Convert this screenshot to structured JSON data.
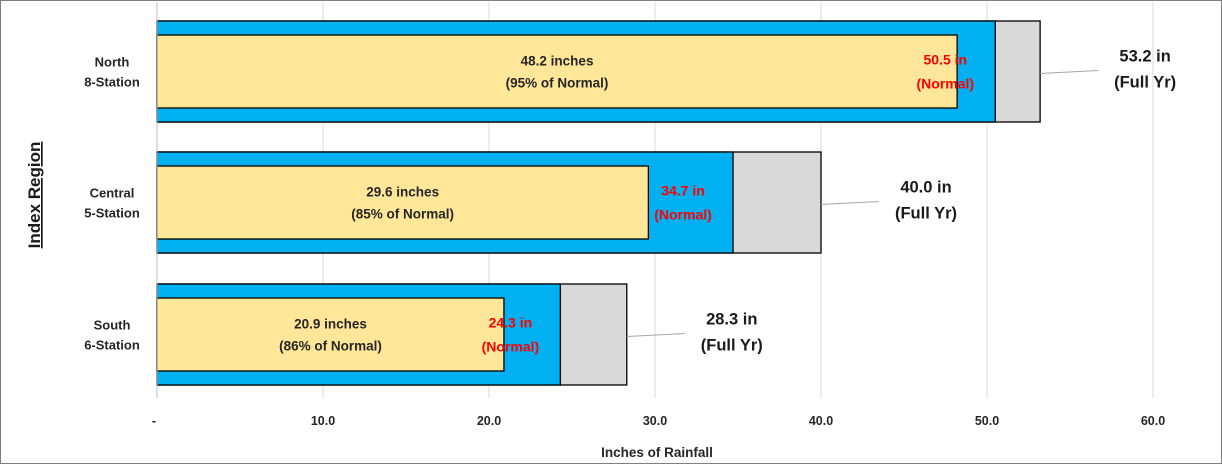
{
  "chart_data": {
    "type": "bar",
    "orientation": "horizontal",
    "xlabel": "Inches of Rainfall",
    "ylabel": "Index  Region",
    "xlim": [
      0,
      64
    ],
    "xticks": [
      0,
      10,
      20,
      30,
      40,
      50,
      60
    ],
    "xtick_labels": [
      "-",
      "10.0",
      "20.0",
      "30.0",
      "40.0",
      "50.0",
      "60.0"
    ],
    "grid": "vertical",
    "colors": {
      "actual": "#FFE699",
      "normal": "#00B0F0",
      "full": "#D9D9D9",
      "normal_text": "#FF0000",
      "outline": "#000000"
    },
    "categories": [
      {
        "name": [
          "North",
          "8-Station"
        ],
        "actual": 48.2,
        "normal": 50.5,
        "full_year": 53.2,
        "actual_label": [
          "48.2 inches",
          "(95% of Normal)"
        ],
        "normal_label": [
          "50.5 in",
          "(Normal)"
        ],
        "full_label": [
          "53.2 in",
          "(Full Yr)"
        ]
      },
      {
        "name": [
          "Central",
          "5-Station"
        ],
        "actual": 29.6,
        "normal": 34.7,
        "full_year": 40.0,
        "actual_label": [
          "29.6 inches",
          "(85% of Normal)"
        ],
        "normal_label": [
          "34.7 in",
          "(Normal)"
        ],
        "full_label": [
          "40.0 in",
          "(Full Yr)"
        ]
      },
      {
        "name": [
          "South",
          "6-Station"
        ],
        "actual": 20.9,
        "normal": 24.3,
        "full_year": 28.3,
        "actual_label": [
          "20.9 inches",
          "(86% of Normal)"
        ],
        "normal_label": [
          "24.3 in",
          "(Normal)"
        ],
        "full_label": [
          "28.3 in",
          "(Full Yr)"
        ]
      }
    ]
  }
}
